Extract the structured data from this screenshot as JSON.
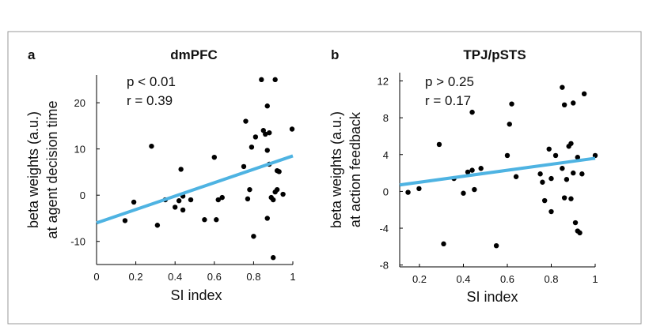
{
  "chart_data": [
    {
      "type": "scatter",
      "panel_label": "a",
      "title": "dmPFC",
      "annotations": [
        "p < 0.01",
        "r = 0.39"
      ],
      "ylabel": [
        "beta weights (a.u.)",
        "at agent decision time"
      ],
      "xlabel": "SI index",
      "xlim": [
        0,
        1
      ],
      "ylim": [
        -15,
        26
      ],
      "xticks": [
        0,
        0.2,
        0.4,
        0.6,
        0.8,
        1
      ],
      "yticks": [
        -10,
        0,
        10,
        20
      ],
      "series": [
        {
          "color": "#000000",
          "x": [
            0.145,
            0.19,
            0.28,
            0.31,
            0.35,
            0.4,
            0.42,
            0.43,
            0.44,
            0.44,
            0.48,
            0.55,
            0.6,
            0.61,
            0.62,
            0.64,
            0.75,
            0.76,
            0.77,
            0.78,
            0.79,
            0.8,
            0.81,
            0.84,
            0.85,
            0.86,
            0.87,
            0.87,
            0.87,
            0.88,
            0.88,
            0.89,
            0.9,
            0.9,
            0.91,
            0.91,
            0.92,
            0.92,
            0.93,
            0.95,
            0.996
          ],
          "values": [
            -5.5,
            -1.5,
            10.6,
            -6.5,
            -1.0,
            -2.6,
            -1.2,
            5.6,
            -0.2,
            -3.2,
            -1.0,
            -5.3,
            8.2,
            -5.3,
            -1.0,
            -0.5,
            6.2,
            16.0,
            -0.8,
            1.2,
            10.4,
            -8.9,
            12.6,
            25,
            14,
            13.2,
            9.7,
            -5,
            19.3,
            13.5,
            6.7,
            -0.5,
            -1.0,
            -13.5,
            0.7,
            25,
            1.2,
            5.3,
            5.1,
            0.2,
            14.3
          ]
        }
      ],
      "fit": {
        "color": "#4eb3e2",
        "x": [
          0,
          1
        ],
        "values": [
          -6,
          8.5
        ]
      }
    },
    {
      "type": "scatter",
      "panel_label": "b",
      "title": "TPJ/pSTS",
      "annotations": [
        "p > 0.25",
        "r = 0.17"
      ],
      "ylabel": [
        "beta weights (a.u.)",
        "at action feedback"
      ],
      "xlabel": "SI index",
      "xlim": [
        0.11,
        1
      ],
      "ylim": [
        -8.2,
        12.9
      ],
      "xticks": [
        0.2,
        0.4,
        0.6,
        0.8,
        1
      ],
      "yticks": [
        -8,
        -4,
        0,
        4,
        8,
        12
      ],
      "series": [
        {
          "color": "#000000",
          "x": [
            0.148,
            0.198,
            0.29,
            0.31,
            0.357,
            0.4,
            0.42,
            0.44,
            0.44,
            0.45,
            0.48,
            0.55,
            0.62,
            0.61,
            0.6,
            0.64,
            0.75,
            0.76,
            0.77,
            0.79,
            0.8,
            0.8,
            0.82,
            0.85,
            0.85,
            0.86,
            0.86,
            0.87,
            0.88,
            0.89,
            0.89,
            0.9,
            0.9,
            0.91,
            0.92,
            0.92,
            0.93,
            0.94,
            0.95,
            1.0
          ],
          "values": [
            -0.1,
            0.3,
            5.1,
            -5.7,
            1.4,
            -0.2,
            2.1,
            8.6,
            2.3,
            0.2,
            2.5,
            -5.9,
            9.5,
            7.3,
            3.9,
            1.6,
            1.9,
            1.0,
            -1.0,
            4.6,
            -2.2,
            1.4,
            3.9,
            11.3,
            2.5,
            9.4,
            -0.7,
            1.3,
            4.9,
            5.2,
            -0.8,
            9.6,
            2.0,
            -3.4,
            -4.3,
            3.7,
            -4.5,
            1.9,
            10.6,
            3.9
          ]
        }
      ],
      "fit": {
        "color": "#4eb3e2",
        "x": [
          0.11,
          1
        ],
        "values": [
          0.7,
          3.6
        ]
      }
    }
  ]
}
